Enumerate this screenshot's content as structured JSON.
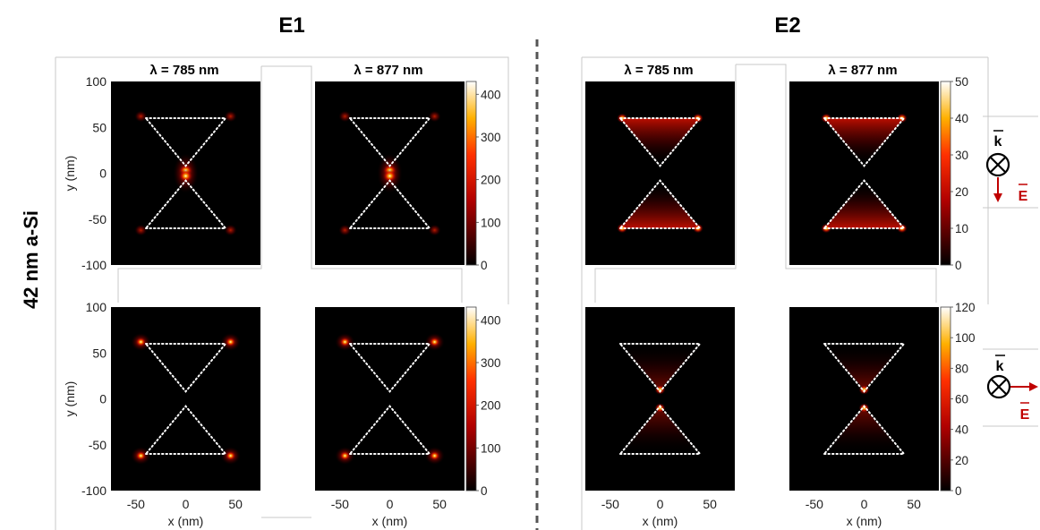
{
  "headers": {
    "left": "E1",
    "right": "E2"
  },
  "row_label": "42 nm a-Si",
  "wavelength_titles": [
    "λ = 785 nm",
    "λ = 877 nm"
  ],
  "axis": {
    "xlabel": "x (nm)",
    "ylabel": "y (nm)",
    "xticks": [
      "-50",
      "0",
      "50"
    ],
    "yticks": [
      "100",
      "50",
      "0",
      "-50",
      "-100"
    ]
  },
  "colorbars": {
    "e1_top": {
      "max": 430,
      "ticks": [
        "0",
        "100",
        "200",
        "300",
        "400"
      ]
    },
    "e1_bottom": {
      "max": 430,
      "ticks": [
        "0",
        "100",
        "200",
        "300",
        "400"
      ]
    },
    "e2_top": {
      "max": 50,
      "ticks": [
        "0",
        "10",
        "20",
        "30",
        "40",
        "50"
      ]
    },
    "e2_bottom": {
      "max": 120,
      "ticks": [
        "0",
        "20",
        "40",
        "60",
        "80",
        "100",
        "120"
      ]
    }
  },
  "legend": {
    "k_label": "k",
    "e_label": "E",
    "top_polarization": "down",
    "bottom_polarization": "right",
    "arrow_color": "#c00000"
  },
  "chart_data": [
    {
      "type": "heatmap",
      "panel": "E1 top λ=785 nm",
      "hotspots": "gap",
      "range": [
        0,
        430
      ]
    },
    {
      "type": "heatmap",
      "panel": "E1 top λ=877 nm",
      "hotspots": "gap",
      "range": [
        0,
        430
      ]
    },
    {
      "type": "heatmap",
      "panel": "E1 bottom λ=785 nm",
      "hotspots": "outer corners",
      "range": [
        0,
        430
      ]
    },
    {
      "type": "heatmap",
      "panel": "E1 bottom λ=877 nm",
      "hotspots": "outer corners",
      "range": [
        0,
        430
      ]
    },
    {
      "type": "heatmap",
      "panel": "E2 top λ=785 nm",
      "hotspots": "wide edges",
      "range": [
        0,
        50
      ]
    },
    {
      "type": "heatmap",
      "panel": "E2 top λ=877 nm",
      "hotspots": "wide edges",
      "range": [
        0,
        50
      ]
    },
    {
      "type": "heatmap",
      "panel": "E2 bottom λ=785 nm",
      "hotspots": "gap",
      "range": [
        0,
        120
      ]
    },
    {
      "type": "heatmap",
      "panel": "E2 bottom λ=877 nm",
      "hotspots": "gap",
      "range": [
        0,
        120
      ]
    }
  ]
}
